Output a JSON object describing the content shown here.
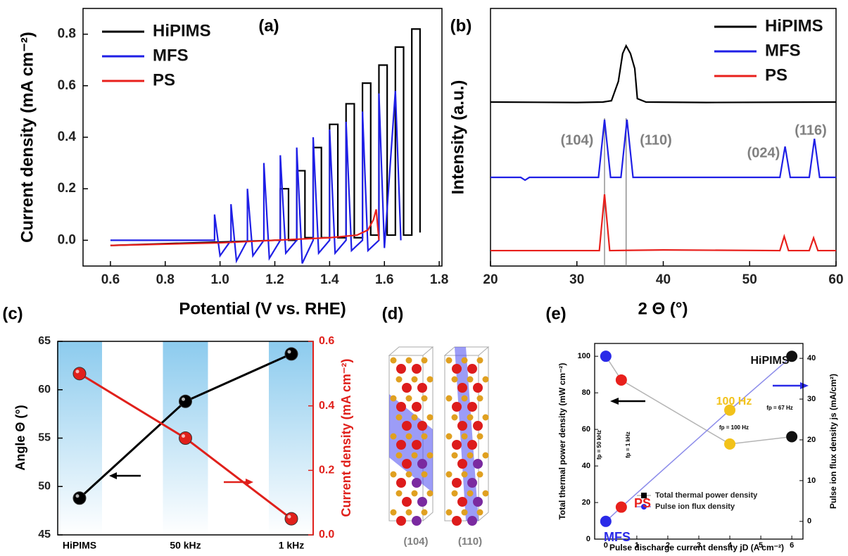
{
  "chart_data": [
    {
      "type": "line",
      "label": "(a)",
      "x_label": "Potential (V vs. RHE)",
      "y_label": "Current density (mA cm⁻²)",
      "xlim": [
        0.5,
        1.81
      ],
      "ylim": [
        -0.1,
        0.9
      ],
      "xticks": [
        0.6,
        0.8,
        {
          "value": 1,
          "label": "1.0"
        },
        1.2,
        1.4,
        1.6,
        1.8
      ],
      "yticks": [
        {
          "value": 0,
          "label": "0.0"
        },
        0.2,
        0.4,
        0.6,
        0.8
      ],
      "legend": "upper left",
      "series": [
        {
          "name": "HiPIMS",
          "color": "#000000",
          "x": [
            0.6,
            1.2,
            1.22,
            1.22,
            1.25,
            1.25,
            1.28,
            1.28,
            1.31,
            1.31,
            1.34,
            1.34,
            1.37,
            1.37,
            1.4,
            1.4,
            1.43,
            1.43,
            1.46,
            1.46,
            1.49,
            1.49,
            1.52,
            1.52,
            1.55,
            1.55,
            1.58,
            1.58,
            1.61,
            1.61,
            1.64,
            1.64,
            1.67,
            1.67,
            1.7,
            1.7,
            1.73,
            1.73
          ],
          "values": [
            -0.02,
            0,
            0,
            0.2,
            0.2,
            0,
            0,
            0.27,
            0.27,
            0.01,
            0.01,
            0.36,
            0.36,
            0.01,
            0.01,
            0.45,
            0.45,
            0.01,
            0.01,
            0.53,
            0.53,
            0.01,
            0.01,
            0.61,
            0.61,
            0.02,
            0.02,
            0.68,
            0.68,
            0.02,
            0.02,
            0.75,
            0.75,
            0.02,
            0.02,
            0.82,
            0.82,
            0.03
          ]
        },
        {
          "name": "MFS",
          "color": "#1f1fe6",
          "x": [
            0.6,
            0.98,
            0.98,
            1.0,
            1.04,
            1.04,
            1.06,
            1.1,
            1.1,
            1.12,
            1.16,
            1.16,
            1.18,
            1.22,
            1.22,
            1.24,
            1.28,
            1.28,
            1.3,
            1.34,
            1.34,
            1.36,
            1.4,
            1.4,
            1.42,
            1.46,
            1.46,
            1.48,
            1.52,
            1.52,
            1.54,
            1.58,
            1.58,
            1.6,
            1.64,
            1.66
          ],
          "values": [
            0,
            0,
            0.1,
            -0.06,
            0,
            0.14,
            -0.08,
            0,
            0.2,
            -0.06,
            0,
            0.3,
            -0.07,
            0,
            0.33,
            -0.05,
            0,
            0.36,
            -0.09,
            0,
            0.4,
            -0.05,
            0,
            0.43,
            -0.05,
            0,
            0.46,
            -0.04,
            0,
            0.5,
            -0.04,
            0,
            0.57,
            -0.03,
            0.58,
            0
          ]
        },
        {
          "name": "PS",
          "color": "#e8201c",
          "x": [
            0.6,
            0.8,
            1.0,
            1.2,
            1.4,
            1.5,
            1.54,
            1.56,
            1.57,
            1.58
          ],
          "values": [
            -0.02,
            -0.015,
            -0.01,
            0,
            0.01,
            0.02,
            0.04,
            0.08,
            0.12,
            0
          ]
        }
      ]
    },
    {
      "type": "line",
      "label": "(b)",
      "x_label": "2 Θ (°)",
      "y_label": "Intensity (a.u.)",
      "xlim": [
        20,
        60
      ],
      "ylim": [
        0,
        12
      ],
      "xticks": [
        20,
        30,
        40,
        50,
        60
      ],
      "legend": "upper right",
      "vlines": [
        33.2,
        35.7
      ],
      "annotations": [
        "(104)",
        "(110)",
        "(024)",
        "(116)"
      ],
      "series": [
        {
          "name": "HiPIMS",
          "color": "#000000",
          "x": [
            20,
            30,
            33,
            34,
            34.8,
            35.3,
            35.7,
            36.2,
            36.7,
            37,
            38,
            45,
            60
          ],
          "values": [
            7.64,
            7.62,
            7.64,
            7.7,
            8.6,
            9.9,
            10.26,
            9.9,
            9.2,
            7.8,
            7.64,
            7.62,
            7.64
          ]
        },
        {
          "name": "MFS",
          "color": "#1f1fe6",
          "x": [
            20,
            23.5,
            24,
            24.5,
            32.5,
            33.2,
            33.9,
            35.1,
            35.8,
            36.5,
            40,
            53.5,
            54.1,
            54.7,
            56.9,
            57.5,
            58.1,
            60
          ],
          "values": [
            4.13,
            4.13,
            4.0,
            4.13,
            4.13,
            6.82,
            4.13,
            4.13,
            6.82,
            4.13,
            4.13,
            4.13,
            5.57,
            4.13,
            4.13,
            5.93,
            4.13,
            4.13
          ]
        },
        {
          "name": "PS",
          "color": "#e8201c",
          "x": [
            20,
            32.6,
            33.2,
            33.8,
            40,
            53.5,
            54,
            54.5,
            56.9,
            57.4,
            57.9,
            60
          ],
          "values": [
            0.72,
            0.72,
            3.34,
            0.72,
            0.75,
            0.72,
            1.38,
            0.72,
            0.72,
            1.31,
            0.72,
            0.72
          ]
        }
      ]
    },
    {
      "type": "line",
      "label": "(c)",
      "y_label": "Angle Θ (°)",
      "y2_label": "Current density (mA cm⁻²)",
      "categories": [
        "HiPIMS",
        "50 kHz",
        "1 kHz"
      ],
      "band_color": "#8ccbee",
      "markers": true,
      "ylim": [
        45,
        65
      ],
      "yticks": [
        45,
        50,
        55,
        60,
        65
      ],
      "y2lim": [
        0,
        0.6
      ],
      "y2ticks": [
        {
          "value": 0,
          "label": "0.0"
        },
        0.2,
        0.4,
        0.6
      ],
      "series": [
        {
          "color": "#000000",
          "values": [
            48.8,
            58.8,
            63.7
          ]
        },
        {
          "color": "#e0201b",
          "values": [
            0.5,
            0.3,
            0.05
          ],
          "axis": "y2"
        }
      ]
    },
    {
      "type": "scatter",
      "label": "(e)",
      "x_label": "Pulse discharge current density jD (A cm⁻²)",
      "y_label": "Total thermal power density (mW cm⁻²)",
      "y2_label": "Pulse ion flux density js (mA/cm²)",
      "x": [
        0,
        0.5,
        4,
        6
      ],
      "point_labels": [
        "MFS",
        "PS",
        "100 Hz",
        "HiPIMS"
      ],
      "point_colors": [
        "#2a2ae8",
        "#e8201c",
        "#f2c21a",
        "#111111"
      ],
      "annotations": [
        "fp = 50 kHz",
        "fp = 1 kHz",
        "fp = 100 Hz",
        "fp = 67 Hz"
      ],
      "xlim": [
        -0.36,
        6.36
      ],
      "xticks": [
        0,
        1,
        2,
        3,
        4,
        5,
        6
      ],
      "ylim": [
        0,
        107
      ],
      "yticks": [
        0,
        20,
        40,
        60,
        80,
        100
      ],
      "y2lim": [
        -4.35,
        43.65
      ],
      "y2ticks": [
        0,
        10,
        20,
        30,
        40
      ],
      "legend": "lower center",
      "series": [
        {
          "name": "Total thermal power density",
          "color": "#000000",
          "line_color": "#b4b4b4",
          "values": [
            100,
            87,
            52,
            56
          ]
        },
        {
          "name": "Pulse ion flux density",
          "color": "#2a2ae8",
          "line_color": "#8c8cea",
          "axis": "y2",
          "values": [
            0,
            3.5,
            27.3,
            40.5
          ]
        }
      ]
    }
  ],
  "structure": {
    "label": "(d)",
    "planes": [
      "(104)",
      "(110)"
    ]
  }
}
